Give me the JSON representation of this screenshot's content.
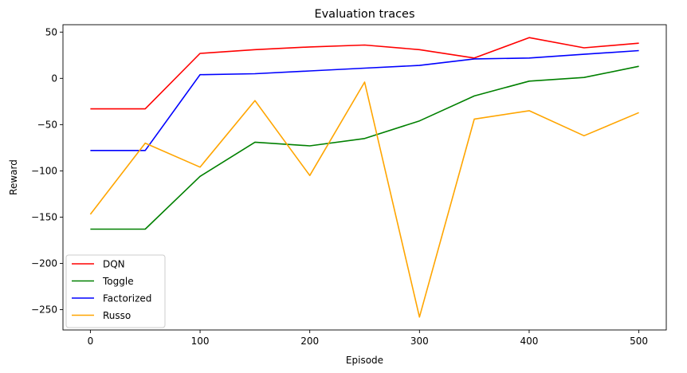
{
  "chart_data": {
    "type": "line",
    "title": "Evaluation traces",
    "xlabel": "Episode",
    "ylabel": "Reward",
    "x": [
      0,
      50,
      100,
      150,
      200,
      250,
      300,
      350,
      400,
      450,
      500
    ],
    "xlim": [
      -25,
      525
    ],
    "ylim": [
      -272,
      58
    ],
    "xticks": [
      0,
      100,
      200,
      300,
      400,
      500
    ],
    "yticks": [
      50,
      0,
      -50,
      -100,
      -150,
      -200,
      -250
    ],
    "grid": false,
    "legend_position": "lower-left",
    "series": [
      {
        "name": "DQN",
        "color": "#ff0000",
        "values": [
          -33,
          -33,
          27,
          31,
          34,
          36,
          31,
          22,
          44,
          33,
          38
        ]
      },
      {
        "name": "Toggle",
        "color": "#008000",
        "values": [
          -163,
          -163,
          -106,
          -69,
          -73,
          -65,
          -46,
          -19,
          -3,
          1,
          13
        ]
      },
      {
        "name": "Factorized",
        "color": "#0000ff",
        "values": [
          -78,
          -78,
          4,
          5,
          8,
          11,
          14,
          21,
          22,
          26,
          30
        ]
      },
      {
        "name": "Russo",
        "color": "#ffa500",
        "values": [
          -147,
          -70,
          -96,
          -24,
          -105,
          -4,
          -258,
          -44,
          -35,
          -62,
          -37
        ]
      }
    ]
  }
}
